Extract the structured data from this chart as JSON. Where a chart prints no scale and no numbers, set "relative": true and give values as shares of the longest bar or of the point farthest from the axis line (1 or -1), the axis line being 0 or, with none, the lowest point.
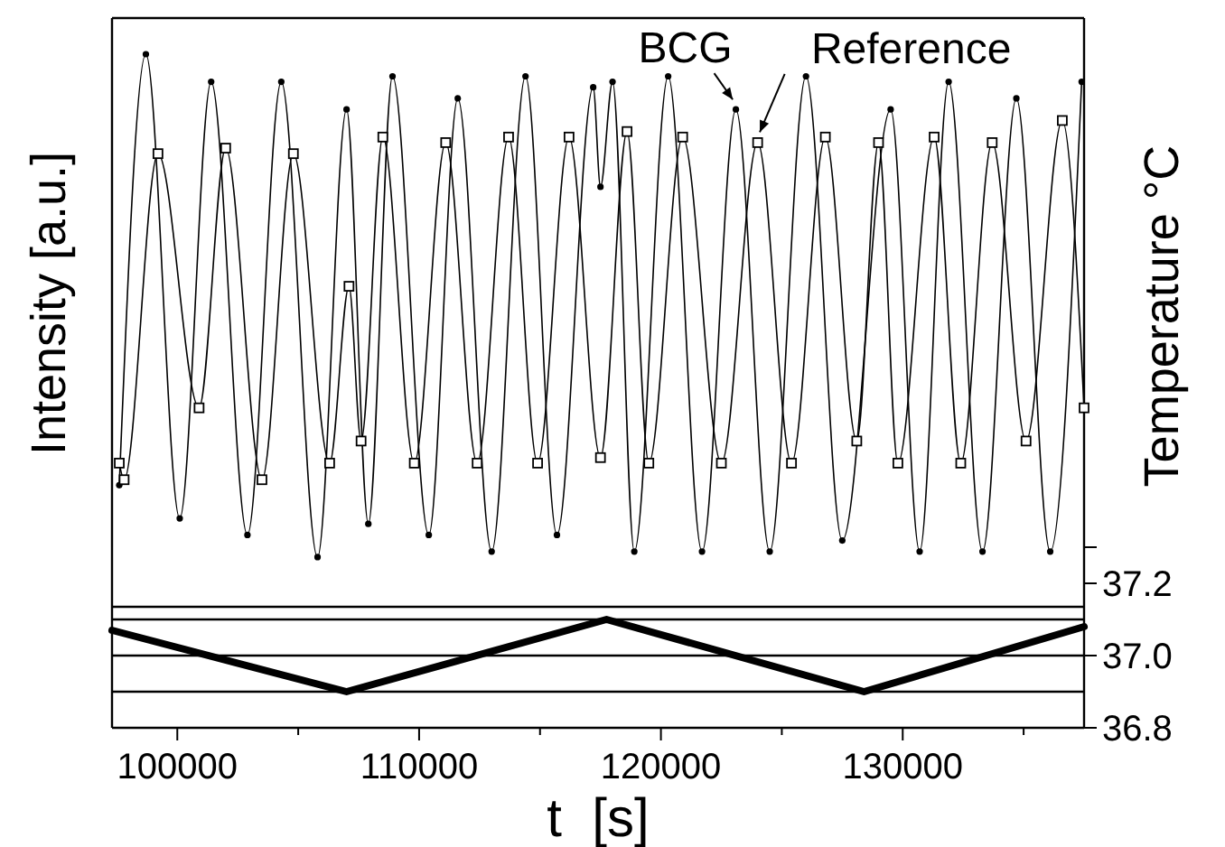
{
  "chart_data": [
    {
      "type": "line",
      "relative": true,
      "ylabel": "Intensity [a.u.]",
      "xlim": [
        97300,
        137500
      ],
      "line_style": "solid",
      "series": [
        {
          "name": "BCG",
          "color": "#000000",
          "marker": "circle",
          "x": [
            97600,
            98700,
            100100,
            101400,
            102900,
            104300,
            105800,
            107000,
            107900,
            108900,
            110400,
            111600,
            113000,
            114400,
            115700,
            117200,
            117500,
            118000,
            118900,
            120300,
            121700,
            123100,
            124500,
            126000,
            127500,
            129500,
            130700,
            131900,
            133300,
            134700,
            136100,
            137400
          ],
          "values": [
            0.22,
            1.0,
            0.16,
            0.95,
            0.13,
            0.95,
            0.09,
            0.9,
            0.15,
            0.96,
            0.13,
            0.92,
            0.1,
            0.96,
            0.13,
            0.94,
            0.76,
            0.95,
            0.1,
            0.96,
            0.1,
            0.9,
            0.1,
            0.96,
            0.12,
            0.9,
            0.1,
            0.95,
            0.1,
            0.92,
            0.1,
            0.95
          ]
        },
        {
          "name": "Reference",
          "color": "#000000",
          "marker": "square",
          "x": [
            97600,
            97800,
            99200,
            100900,
            102000,
            103500,
            104800,
            106300,
            107100,
            107600,
            108500,
            109800,
            111100,
            112400,
            113700,
            114900,
            116200,
            117500,
            118600,
            119500,
            120900,
            122500,
            124000,
            125400,
            126800,
            128100,
            129000,
            129800,
            131300,
            132400,
            133700,
            135100,
            136600,
            137500
          ],
          "values": [
            0.26,
            0.23,
            0.82,
            0.36,
            0.83,
            0.23,
            0.82,
            0.26,
            0.58,
            0.3,
            0.85,
            0.26,
            0.84,
            0.26,
            0.85,
            0.26,
            0.85,
            0.27,
            0.86,
            0.26,
            0.85,
            0.26,
            0.84,
            0.26,
            0.85,
            0.3,
            0.84,
            0.26,
            0.85,
            0.26,
            0.84,
            0.3,
            0.88,
            0.36
          ]
        }
      ]
    },
    {
      "type": "line",
      "xlabel": "t  [s]",
      "y2label": "Temperature °C",
      "xlim": [
        97300,
        137500
      ],
      "line_style": "solid",
      "xticks": [
        100000,
        {
          "value": 105000,
          "label": null
        },
        110000,
        {
          "value": 115000,
          "label": null
        },
        120000,
        {
          "value": 125000,
          "label": null
        },
        130000,
        {
          "value": 135000,
          "label": null
        }
      ],
      "y2lim": [
        36.8,
        37.3
      ],
      "y2ticks": [
        36.8,
        {
          "value": 37,
          "label": "37.0"
        },
        37.2,
        {
          "value": 37.3,
          "label": null
        }
      ],
      "ref_lines": [
        {
          "axis": "y2",
          "value": 36.9,
          "color": "#000000"
        },
        {
          "axis": "y2",
          "value": 37.0,
          "color": "#000000"
        },
        {
          "axis": "y2",
          "value": 37.1,
          "color": "#000000"
        }
      ],
      "series": [
        {
          "color": "#000000",
          "axis": "y2",
          "marker": "none",
          "x": [
            97300,
            107000,
            117750,
            128400,
            137500
          ],
          "values": [
            37.07,
            36.9,
            37.1,
            36.9,
            37.08
          ]
        }
      ]
    }
  ]
}
